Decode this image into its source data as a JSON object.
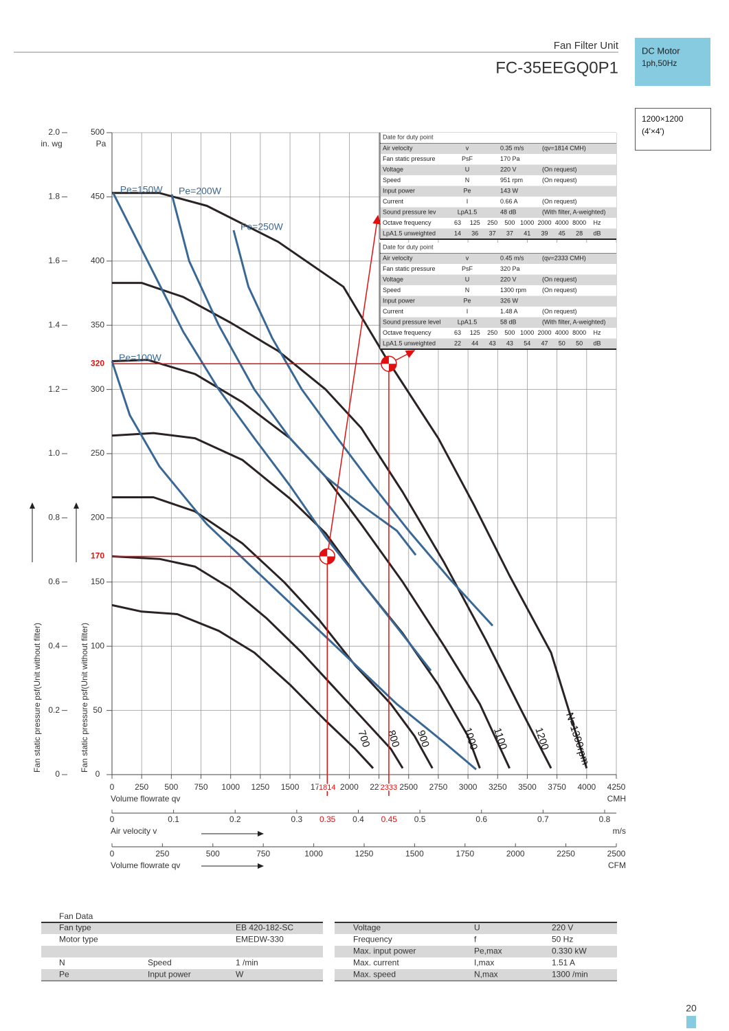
{
  "header": {
    "category": "Fan Filter Unit",
    "model": "FC-35EEGQ0P1",
    "motor": "DC Motor",
    "supply": "1ph,50Hz",
    "size": "1200×1200",
    "size_ft": "(4'×4')"
  },
  "chart_data": {
    "type": "line",
    "y_label": "Fan static pressure psf(Unit without filter)",
    "y_unit": "Pa",
    "ylim": [
      0,
      500
    ],
    "yticks": [
      0,
      50,
      100,
      150,
      200,
      250,
      300,
      350,
      400,
      450,
      500
    ],
    "y2_label": "Fan static pressure psf(Unit without filter)",
    "y2_unit": "in. wg",
    "y2lim": [
      0,
      2
    ],
    "y2ticks": [
      0,
      0.2,
      0.4,
      0.6,
      0.8,
      {
        "value": 1,
        "label": "1.0"
      },
      1.2,
      1.4,
      1.6,
      1.8,
      {
        "value": 2,
        "label": "2.0"
      }
    ],
    "x_label": "Volume flowrate qv",
    "x_unit": "CMH",
    "xlim": [
      0,
      4250
    ],
    "xticks": [
      0,
      250,
      500,
      750,
      1000,
      1250,
      1500,
      1750,
      2000,
      2250,
      2500,
      2750,
      3000,
      3250,
      3500,
      3750,
      4000,
      4250
    ],
    "x2_label": "Air velocity v",
    "x2_unit": "m/s",
    "x2lim": [
      0,
      0.8
    ],
    "x2ticks": [
      0,
      0.1,
      0.2,
      0.3,
      0.4,
      0.5,
      0.6,
      0.7,
      0.8
    ],
    "x3_label": "Volume flowrate qv",
    "x3_unit": "CFM",
    "x3lim": [
      0,
      2500
    ],
    "x3ticks": [
      0,
      250,
      500,
      750,
      1000,
      1250,
      1500,
      1750,
      2000,
      2250,
      2500
    ],
    "grid": true,
    "series": [
      {
        "name": "700",
        "color": "#2b2323",
        "x": [
          0,
          250,
          550,
          900,
          1200,
          1500,
          1800,
          2050,
          2200
        ],
        "values": [
          132,
          127,
          125,
          112,
          95,
          70,
          42,
          20,
          5
        ]
      },
      {
        "name": "800",
        "color": "#2b2323",
        "x": [
          0,
          400,
          700,
          1000,
          1300,
          1600,
          1850,
          2100,
          2350,
          2450
        ],
        "values": [
          170,
          168,
          162,
          145,
          122,
          95,
          70,
          45,
          20,
          5
        ]
      },
      {
        "name": "900",
        "color": "#2b2323",
        "x": [
          0,
          350,
          700,
          1100,
          1450,
          1750,
          2050,
          2350,
          2550,
          2700
        ],
        "values": [
          216,
          216,
          205,
          180,
          150,
          120,
          85,
          55,
          30,
          5
        ]
      },
      {
        "name": "1000",
        "color": "#2b2323",
        "x": [
          0,
          350,
          700,
          1100,
          1500,
          1800,
          2100,
          2450,
          2750,
          3000,
          3100
        ],
        "values": [
          264,
          266,
          262,
          245,
          215,
          188,
          150,
          110,
          70,
          30,
          5
        ]
      },
      {
        "name": "1100",
        "color": "#2b2323",
        "x": [
          0,
          300,
          700,
          1100,
          1500,
          1800,
          2100,
          2450,
          2800,
          3100,
          3350
        ],
        "values": [
          322,
          323,
          312,
          290,
          262,
          232,
          195,
          150,
          100,
          55,
          5
        ]
      },
      {
        "name": "1200",
        "color": "#2b2323",
        "x": [
          0,
          250,
          600,
          1000,
          1400,
          1800,
          2100,
          2450,
          2800,
          3150,
          3450,
          3700
        ],
        "values": [
          383,
          383,
          372,
          352,
          330,
          300,
          270,
          220,
          165,
          105,
          50,
          5
        ]
      },
      {
        "name": "N=1300rpm",
        "color": "#2b2323",
        "x": [
          0,
          400,
          800,
          1400,
          1950,
          2300,
          2750,
          3050,
          3350,
          3700,
          4000
        ],
        "values": [
          453,
          453,
          443,
          415,
          380,
          326,
          262,
          210,
          155,
          95,
          5
        ]
      },
      {
        "name": "Pe=100W",
        "color": "#3a6895",
        "x": [
          0,
          150,
          400,
          800,
          1200,
          1600,
          2000,
          2400,
          2800,
          3069
        ],
        "values": [
          322,
          280,
          240,
          195,
          160,
          125,
          90,
          55,
          25,
          4
        ]
      },
      {
        "name": "Pe=150W",
        "color": "#3a6895",
        "x": [
          10,
          300,
          600,
          900,
          1200,
          1500,
          1800,
          2100,
          2400,
          2687
        ],
        "values": [
          453,
          400,
          345,
          300,
          262,
          225,
          185,
          150,
          115,
          81
        ]
      },
      {
        "name": "Pe=200W",
        "color": "#3a6895",
        "x": [
          504,
          650,
          900,
          1200,
          1500,
          1800,
          2100,
          2400,
          2560
        ],
        "values": [
          452,
          400,
          350,
          300,
          262,
          232,
          210,
          190,
          171
        ]
      },
      {
        "name": "Pe=250W",
        "color": "#3a6895",
        "x": [
          1025,
          1150,
          1350,
          1600,
          1900,
          2200,
          2500,
          2850,
          3208
        ],
        "values": [
          424,
          380,
          340,
          300,
          262,
          225,
          190,
          152,
          116
        ]
      }
    ],
    "duty_points": [
      {
        "flow": 1814,
        "pressure": 170,
        "velocity": 0.35
      },
      {
        "flow": 2333,
        "pressure": 320,
        "velocity": 0.45
      }
    ]
  },
  "duty_tables": [
    {
      "title": "Date for   duty point",
      "rows": [
        {
          "label": "Air velocity",
          "symbol": "v",
          "value": "0.35 m/s",
          "note": "(qv=1814 CMH)"
        },
        {
          "label": "Fan  static pressure",
          "symbol": "PsF",
          "value": "170 Pa"
        },
        {
          "label": "Voltage",
          "symbol": "U",
          "value": "220 V",
          "note": "(On  request)"
        },
        {
          "label": "Speed",
          "symbol": "N",
          "value": "951 rpm",
          "note": "(On  request)"
        },
        {
          "label": "Input power",
          "symbol": "Pe",
          "value": "143 W"
        },
        {
          "label": "Current",
          "symbol": "I",
          "value": "0.66 A",
          "note": "(On  request)"
        },
        {
          "label": "Sound pressure     lev",
          "symbol": "LpA1.5",
          "value": "48 dB",
          "note": "(With filter, A-weighted)"
        },
        {
          "label": "Octave frequency",
          "bands": [
            63,
            125,
            250,
            500,
            1000,
            2000,
            4000,
            8000
          ],
          "unit": "Hz"
        },
        {
          "label": "LpA1.5 unweighted",
          "bands": [
            14,
            36,
            37,
            37,
            41,
            39,
            45,
            28
          ],
          "unit": "dB"
        }
      ]
    },
    {
      "title": "Date for   duty point",
      "rows": [
        {
          "label": "Air velocity",
          "symbol": "v",
          "value": "0.45 m/s",
          "note": "(qv=2333 CMH)"
        },
        {
          "label": "Fan  static pressure",
          "symbol": "PsF",
          "value": "320 Pa"
        },
        {
          "label": "Voltage",
          "symbol": "U",
          "value": "220 V",
          "note": "(On  request)"
        },
        {
          "label": "Speed",
          "symbol": "N",
          "value": "1300 rpm",
          "note": "(On  request)"
        },
        {
          "label": "Input power",
          "symbol": "Pe",
          "value": "326 W"
        },
        {
          "label": "Current",
          "symbol": "I",
          "value": "1.48 A",
          "note": "(On  request)"
        },
        {
          "label": "Sound pressure     level",
          "symbol": "LpA1.5",
          "value": "58 dB",
          "note": "(With filter, A-weighted)"
        },
        {
          "label": "Octave frequency",
          "bands": [
            63,
            125,
            250,
            500,
            1000,
            2000,
            4000,
            8000
          ],
          "unit": "Hz"
        },
        {
          "label": "LpA1.5 unweighted",
          "bands": [
            22,
            44,
            43,
            43,
            54,
            47,
            50,
            50
          ],
          "unit": "dB"
        }
      ]
    }
  ],
  "fan_data": {
    "title": "Fan Data",
    "left": [
      {
        "label": "Fan type",
        "value": "EB 420-182-SC"
      },
      {
        "label": "Motor type",
        "value": "EMEDW-330"
      },
      {
        "label": "N",
        "description": "Speed",
        "value": "1 /min"
      },
      {
        "label": "Pe",
        "description": "Input power",
        "value": "W"
      }
    ],
    "right": [
      {
        "label": "Voltage",
        "symbol": "U",
        "value": "220 V"
      },
      {
        "label": "Frequency",
        "symbol": "f",
        "value": "50 Hz"
      },
      {
        "label": "Max. input power",
        "symbol": "Pe,max",
        "value": "0.330 kW"
      },
      {
        "label": "Max. current",
        "symbol": "I,max",
        "value": "1.51 A"
      },
      {
        "label": "Max. speed",
        "symbol": "N,max",
        "value": "1300 /min"
      }
    ]
  },
  "page_number": "20"
}
